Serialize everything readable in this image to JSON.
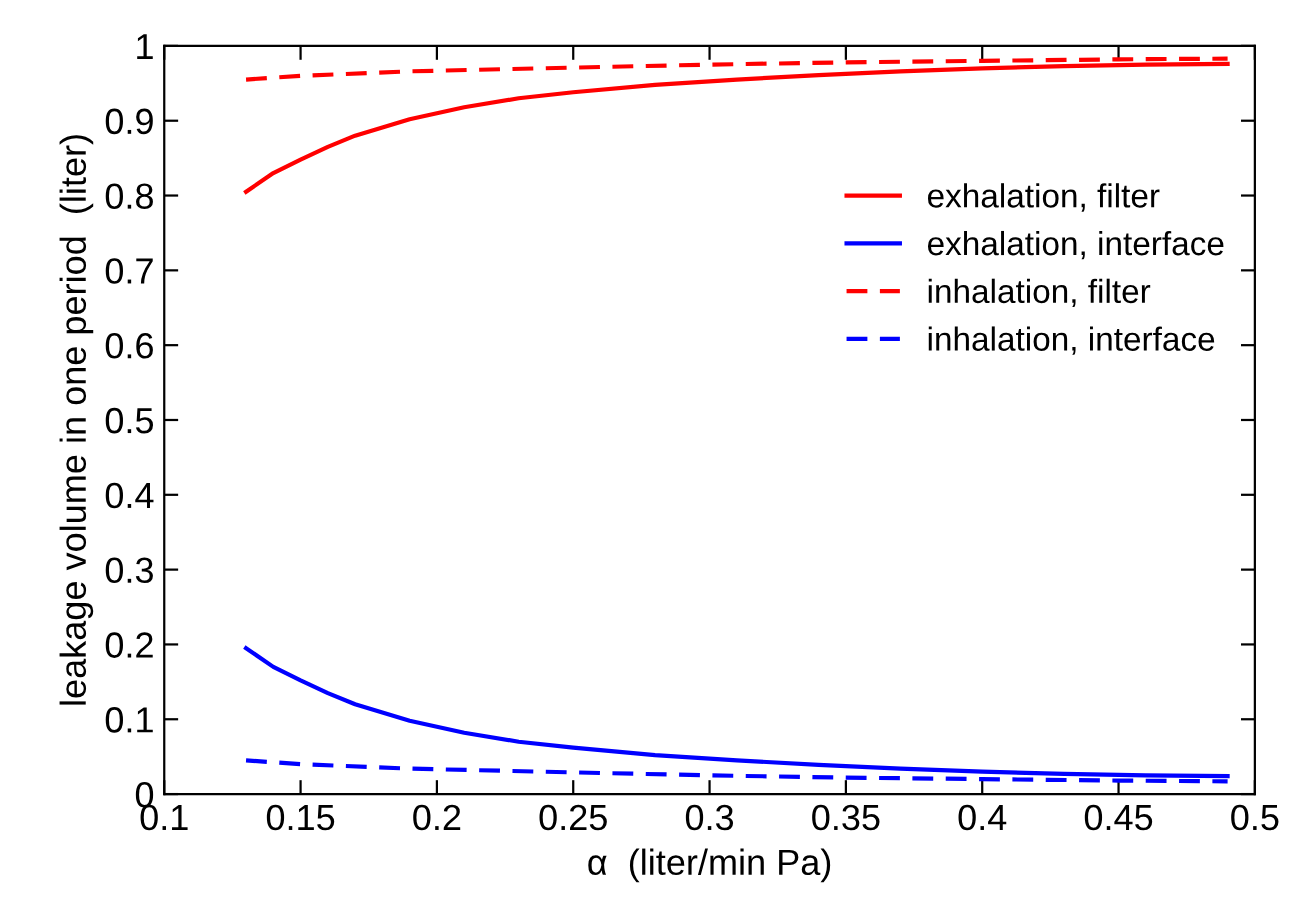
{
  "chart_data": {
    "type": "line",
    "xlabel": "α  (liter/min Pa)",
    "ylabel": "leakage volume in one period  (liter)",
    "xlim": [
      0.1,
      0.5
    ],
    "xticks": [
      0.1,
      0.15,
      0.2,
      0.25,
      0.3,
      0.35,
      0.4,
      0.45,
      0.5
    ],
    "ylim": [
      0,
      1
    ],
    "yticks": [
      0,
      0.1,
      0.2,
      0.3,
      0.4,
      0.5,
      0.6,
      0.7,
      0.8,
      0.9,
      1
    ],
    "grid": false,
    "legend": "right",
    "marker": "none",
    "series": [
      {
        "name": "exhalation, filter",
        "color": "#ff0000",
        "line_style": "solid",
        "x": [
          0.13,
          0.14,
          0.15,
          0.16,
          0.17,
          0.19,
          0.21,
          0.23,
          0.25,
          0.28,
          0.31,
          0.34,
          0.37,
          0.4,
          0.43,
          0.46,
          0.49
        ],
        "values": [
          0.805,
          0.83,
          0.848,
          0.865,
          0.88,
          0.902,
          0.918,
          0.93,
          0.938,
          0.948,
          0.955,
          0.961,
          0.966,
          0.97,
          0.973,
          0.975,
          0.976
        ]
      },
      {
        "name": "exhalation, interface",
        "color": "#0000ff",
        "line_style": "solid",
        "x": [
          0.13,
          0.14,
          0.15,
          0.16,
          0.17,
          0.19,
          0.21,
          0.23,
          0.25,
          0.28,
          0.31,
          0.34,
          0.37,
          0.4,
          0.43,
          0.46,
          0.49
        ],
        "values": [
          0.195,
          0.17,
          0.152,
          0.135,
          0.12,
          0.098,
          0.082,
          0.07,
          0.062,
          0.052,
          0.045,
          0.039,
          0.034,
          0.03,
          0.027,
          0.025,
          0.024
        ]
      },
      {
        "name": "inhalation, filter",
        "color": "#ff0000",
        "line_style": "dashed",
        "x": [
          0.13,
          0.15,
          0.19,
          0.25,
          0.3,
          0.35,
          0.4,
          0.45,
          0.49
        ],
        "values": [
          0.955,
          0.96,
          0.966,
          0.971,
          0.975,
          0.978,
          0.98,
          0.982,
          0.983
        ]
      },
      {
        "name": "inhalation, interface",
        "color": "#0000ff",
        "line_style": "dashed",
        "x": [
          0.13,
          0.15,
          0.19,
          0.25,
          0.3,
          0.35,
          0.4,
          0.45,
          0.49
        ],
        "values": [
          0.045,
          0.04,
          0.034,
          0.029,
          0.025,
          0.022,
          0.02,
          0.018,
          0.017
        ]
      }
    ]
  }
}
